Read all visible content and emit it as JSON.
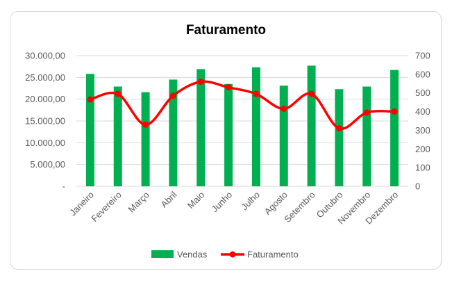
{
  "chart_data": {
    "type": "bar",
    "title": "Faturamento",
    "categories": [
      "Janeiro",
      "Fevereiro",
      "Março",
      "Abril",
      "Maio",
      "Junho",
      "Julho",
      "Agosto",
      "Setembro",
      "Outubro",
      "Novembro",
      "Dezembro"
    ],
    "series": [
      {
        "name": "Vendas",
        "type": "bar",
        "axis": "left",
        "color": "#00b050",
        "values": [
          25800,
          22900,
          21600,
          24500,
          26900,
          23500,
          27300,
          23100,
          27700,
          22300,
          22900,
          26700
        ]
      },
      {
        "name": "Faturamento",
        "type": "line",
        "smooth": true,
        "axis": "right",
        "color": "#ff0000",
        "values": [
          465,
          495,
          330,
          485,
          560,
          530,
          495,
          415,
          495,
          310,
          395,
          400
        ]
      }
    ],
    "y_left": {
      "min": 0,
      "max": 30000,
      "ticks": [
        "-",
        "5.000,00",
        "10.000,00",
        "15.000,00",
        "20.000,00",
        "25.000,00",
        "30.000,00"
      ]
    },
    "y_right": {
      "min": 0,
      "max": 700,
      "ticks": [
        "0",
        "100",
        "200",
        "300",
        "400",
        "500",
        "600",
        "700"
      ]
    },
    "grid": true,
    "legend": "bottom"
  }
}
